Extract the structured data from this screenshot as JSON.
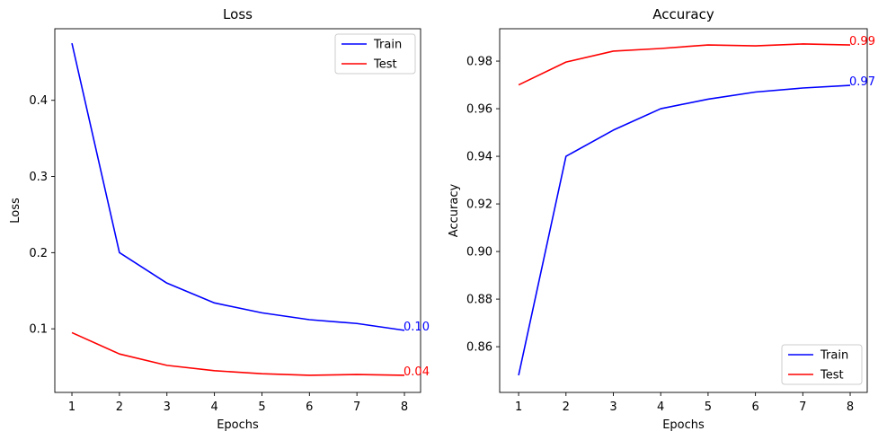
{
  "chart_data": [
    {
      "type": "line",
      "title": "Loss",
      "xlabel": "Epochs",
      "ylabel": "Loss",
      "x": [
        1,
        2,
        3,
        4,
        5,
        6,
        7,
        8
      ],
      "xlim": [
        0.64,
        8.34
      ],
      "ylim": [
        0.0165,
        0.494
      ],
      "xticks": [
        1,
        2,
        3,
        4,
        5,
        6,
        7,
        8
      ],
      "xtick_labels": [
        "1",
        "2",
        "3",
        "4",
        "5",
        "6",
        "7",
        "8"
      ],
      "yticks": [
        0.1,
        0.2,
        0.3,
        0.4
      ],
      "ytick_labels": [
        "0.1",
        "0.2",
        "0.3",
        "0.4"
      ],
      "grid": false,
      "legend": "upper right",
      "series": [
        {
          "name": "Train",
          "color": "#0000ff",
          "values": [
            0.475,
            0.2,
            0.16,
            0.134,
            0.121,
            0.112,
            0.107,
            0.098
          ]
        },
        {
          "name": "Test",
          "color": "#ff0000",
          "values": [
            0.095,
            0.067,
            0.052,
            0.045,
            0.041,
            0.039,
            0.04,
            0.039
          ]
        }
      ],
      "annotations": [
        {
          "series": "Train",
          "x": 8,
          "y": 0.098,
          "text": "0.10",
          "color": "#0000ff"
        },
        {
          "series": "Test",
          "x": 8,
          "y": 0.039,
          "text": "0.04",
          "color": "#ff0000"
        }
      ]
    },
    {
      "type": "line",
      "title": "Accuracy",
      "xlabel": "Epochs",
      "ylabel": "Accuracy",
      "x": [
        1,
        2,
        3,
        4,
        5,
        6,
        7,
        8
      ],
      "xlim": [
        0.6,
        8.36
      ],
      "ylim": [
        0.8408,
        0.9936
      ],
      "xticks": [
        1,
        2,
        3,
        4,
        5,
        6,
        7,
        8
      ],
      "xtick_labels": [
        "1",
        "2",
        "3",
        "4",
        "5",
        "6",
        "7",
        "8"
      ],
      "yticks": [
        0.86,
        0.88,
        0.9,
        0.92,
        0.94,
        0.96,
        0.98
      ],
      "ytick_labels": [
        "0.86",
        "0.88",
        "0.90",
        "0.92",
        "0.94",
        "0.96",
        "0.98"
      ],
      "grid": false,
      "legend": "lower right",
      "series": [
        {
          "name": "Train",
          "color": "#0000ff",
          "values": [
            0.848,
            0.94,
            0.951,
            0.96,
            0.964,
            0.967,
            0.9687,
            0.9698
          ]
        },
        {
          "name": "Test",
          "color": "#ff0000",
          "values": [
            0.97,
            0.9796,
            0.9842,
            0.9853,
            0.9868,
            0.9864,
            0.9872,
            0.9868
          ]
        }
      ],
      "annotations": [
        {
          "series": "Train",
          "x": 8,
          "y": 0.9698,
          "text": "0.97",
          "color": "#0000ff"
        },
        {
          "series": "Test",
          "x": 8,
          "y": 0.9868,
          "text": "0.99",
          "color": "#ff0000"
        }
      ]
    }
  ]
}
